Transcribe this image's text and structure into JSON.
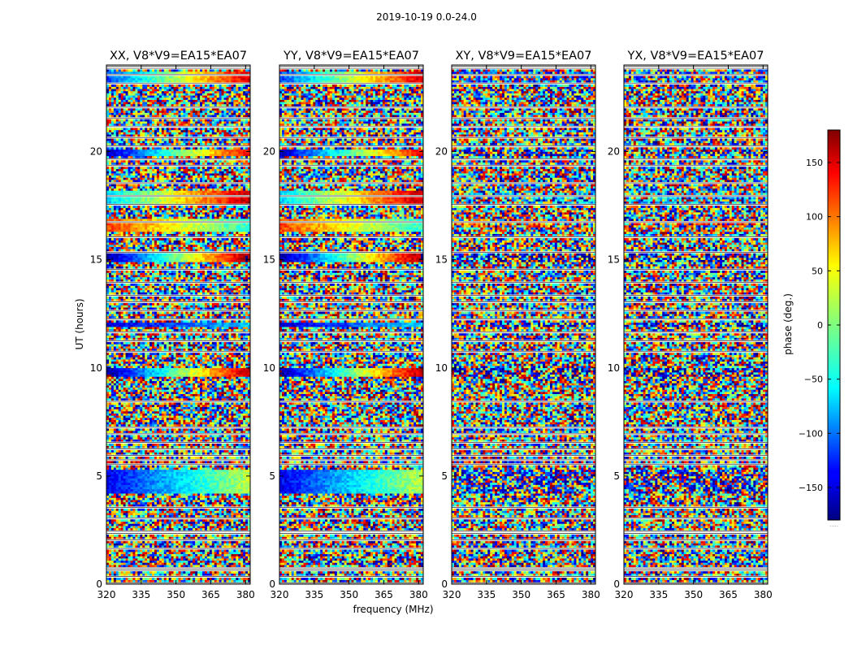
{
  "figure": {
    "suptitle": "2019-10-19 0.0-24.0"
  },
  "chart_data": {
    "type": "heatmap",
    "panels": [
      {
        "title": "XX, V8*V9=EA15*EA07",
        "style": "structured"
      },
      {
        "title": "YY, V8*V9=EA15*EA07",
        "style": "structured"
      },
      {
        "title": "XY, V8*V9=EA15*EA07",
        "style": "noise"
      },
      {
        "title": "YX, V8*V9=EA15*EA07",
        "style": "noise"
      }
    ],
    "x_axis": {
      "label": "frequency (MHz)",
      "range": [
        320,
        382
      ],
      "ticks": [
        320,
        335,
        350,
        365,
        380
      ]
    },
    "y_axis": {
      "label": "UT (hours)",
      "range": [
        0,
        24
      ],
      "ticks": [
        0,
        5,
        10,
        15,
        20
      ]
    },
    "colorbar": {
      "label": "phase (deg.)",
      "range": [
        -180,
        180
      ],
      "ticks": [
        -150,
        -100,
        -50,
        0,
        50,
        100,
        150
      ],
      "colormap": "jet",
      "footer": "....."
    },
    "flagged_time_ranges_hours": [
      [
        0.0,
        0.1
      ],
      [
        0.3,
        0.4
      ],
      [
        0.6,
        0.8
      ],
      [
        1.6,
        1.7
      ],
      [
        2.0,
        2.1
      ],
      [
        2.3,
        2.5
      ],
      [
        3.0,
        3.1
      ],
      [
        3.5,
        3.6
      ],
      [
        5.5,
        5.6
      ],
      [
        5.7,
        5.8
      ],
      [
        5.9,
        6.0
      ],
      [
        6.2,
        6.3
      ],
      [
        6.5,
        6.6
      ],
      [
        6.9,
        7.0
      ],
      [
        7.2,
        7.3
      ],
      [
        8.4,
        8.5
      ],
      [
        10.7,
        10.8
      ],
      [
        11.2,
        11.3
      ],
      [
        11.6,
        11.7
      ],
      [
        12.2,
        12.3
      ],
      [
        12.6,
        12.7
      ],
      [
        13.0,
        13.1
      ],
      [
        13.3,
        13.4
      ],
      [
        13.9,
        14.0
      ],
      [
        14.5,
        14.6
      ],
      [
        15.3,
        15.4
      ],
      [
        16.0,
        16.1
      ],
      [
        16.7,
        16.8
      ],
      [
        17.5,
        17.6
      ],
      [
        17.9,
        18.0
      ],
      [
        18.5,
        18.6
      ],
      [
        19.3,
        19.4
      ],
      [
        19.6,
        19.7
      ],
      [
        20.2,
        20.3
      ],
      [
        20.6,
        20.7
      ],
      [
        21.1,
        21.2
      ],
      [
        21.5,
        21.6
      ],
      [
        22.0,
        22.1
      ],
      [
        23.1,
        23.2
      ],
      [
        23.5,
        23.6
      ],
      [
        23.8,
        24.0
      ]
    ],
    "structured_bands": [
      {
        "t": [
          4.2,
          5.3
        ],
        "phase_start_deg": -140,
        "phase_end_deg": 20,
        "note": "phase wraps across band in XX/YY"
      },
      {
        "t": [
          9.6,
          10.0
        ],
        "phase_start_deg": -170,
        "phase_end_deg": 160
      },
      {
        "t": [
          11.9,
          12.1
        ],
        "phase_start_deg": -150,
        "phase_end_deg": -60
      },
      {
        "t": [
          14.9,
          15.3
        ],
        "phase_start_deg": -170,
        "phase_end_deg": 170
      },
      {
        "t": [
          16.3,
          16.9
        ],
        "phase_start_deg": 110,
        "phase_end_deg": -30
      },
      {
        "t": [
          17.6,
          18.2
        ],
        "phase_start_deg": -60,
        "phase_end_deg": 160
      },
      {
        "t": [
          19.8,
          20.1
        ],
        "phase_start_deg": -160,
        "phase_end_deg": 140
      },
      {
        "t": [
          23.2,
          23.7
        ],
        "phase_start_deg": -110,
        "phase_end_deg": 150
      }
    ]
  }
}
